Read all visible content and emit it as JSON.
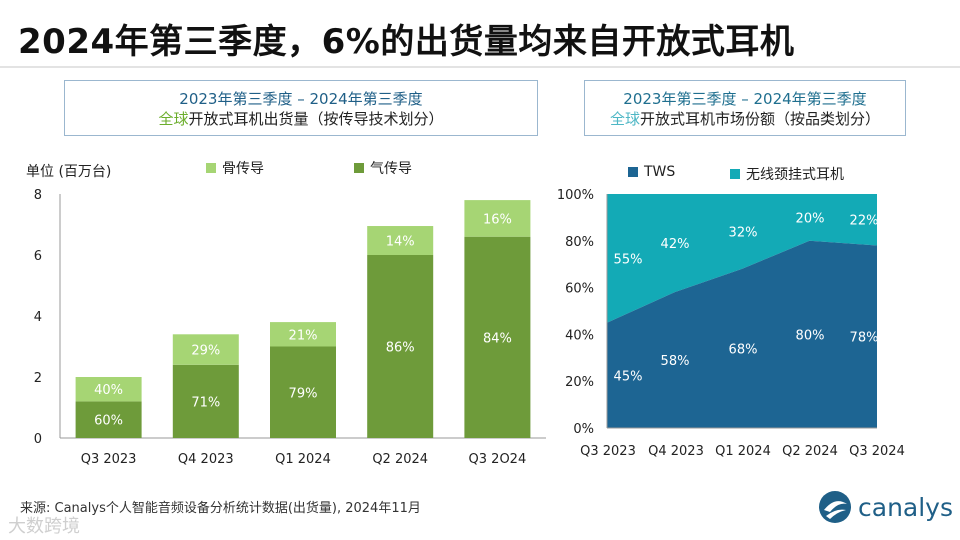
{
  "title": "2024年第三季度，6%的出货量均来自开放式耳机",
  "left_box": {
    "line1": "2023年第三季度 – 2024年第三季度",
    "line2_highlight": "全球",
    "line2_rest": "开放式耳机出货量（按传导技术划分）"
  },
  "right_box": {
    "line1": "2023年第三季度 –  2024年第三季度",
    "line2_highlight": "全球",
    "line2_rest": "开放式耳机市场份额（按品类划分）"
  },
  "colors": {
    "bone": "#a6d574",
    "air": "#6e9b3a",
    "tws": "#1d6593",
    "neckband": "#13aab6"
  },
  "footer": "来源: Canalys个人智能音频设备分析统计数据(出货量), 2024年11月",
  "logo_text": "canalys",
  "watermark": "大数跨境",
  "chart_data": [
    {
      "type": "bar",
      "stacked": true,
      "categories": [
        "Q3 2023",
        "Q4 2023",
        "Q1 2024",
        "Q2 2024",
        "Q3 2O24"
      ],
      "unit_label": "单位 (百万台)",
      "ylim": [
        0,
        8
      ],
      "yticks": [
        "0",
        "2",
        "4",
        "6",
        "8"
      ],
      "series": [
        {
          "name": "气传导",
          "values": [
            1.2,
            2.4,
            3.0,
            6.0,
            6.6
          ],
          "labels": [
            "60%",
            "71%",
            "79%",
            "86%",
            "84%"
          ]
        },
        {
          "name": "骨传导",
          "values": [
            0.8,
            1.0,
            0.8,
            0.95,
            1.2
          ],
          "labels": [
            "40%",
            "29%",
            "21%",
            "14%",
            "16%"
          ]
        }
      ]
    },
    {
      "type": "area",
      "stacked": true,
      "categories": [
        "Q3 2023",
        "Q4 2023",
        "Q1 2024",
        "Q2 2024",
        "Q3 2024"
      ],
      "ylim": [
        0,
        100
      ],
      "yticks": [
        "0%",
        "20%",
        "40%",
        "60%",
        "80%",
        "100%"
      ],
      "series": [
        {
          "name": "TWS",
          "values": [
            45,
            58,
            68,
            80,
            78
          ],
          "labels": [
            "45%",
            "58%",
            "68%",
            "80%",
            "78%"
          ]
        },
        {
          "name": "无线颈挂式耳机",
          "values": [
            55,
            42,
            32,
            20,
            22
          ],
          "labels": [
            "55%",
            "42%",
            "32%",
            "20%",
            "22%"
          ]
        }
      ]
    }
  ]
}
